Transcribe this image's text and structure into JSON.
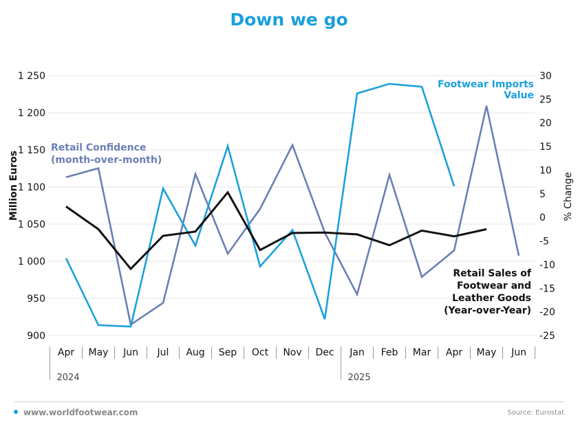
{
  "chart_data": {
    "type": "line",
    "title": "Down we go",
    "ylabel_left": "Million Euros",
    "ylabel_right": "% Change",
    "ylim_left": [
      900,
      1250
    ],
    "ylim_right": [
      -25,
      30
    ],
    "yticks_left": [
      900,
      950,
      1000,
      1050,
      1100,
      1150,
      1200,
      1250
    ],
    "yticks_left_labels": [
      "900",
      "950",
      "1 000",
      "1 050",
      "1 100",
      "1 150",
      "1 200",
      "1 250"
    ],
    "yticks_right": [
      -25,
      -20,
      -15,
      -10,
      -5,
      0,
      5,
      10,
      15,
      20,
      25,
      30
    ],
    "yticks_right_labels": [
      "-25",
      "-20",
      "-15",
      "-10",
      "-5",
      "0",
      "5",
      "10",
      "15",
      "20",
      "25",
      "30"
    ],
    "categories": [
      "Apr",
      "May",
      "Jun",
      "Jul",
      "Aug",
      "Sep",
      "Oct",
      "Nov",
      "Dec",
      "Jan",
      "Feb",
      "Mar",
      "Apr",
      "May",
      "Jun"
    ],
    "year_groups": [
      {
        "label": "2024",
        "start": 0,
        "end": 8
      },
      {
        "label": "2025",
        "start": 9,
        "end": 14
      }
    ],
    "grid": true,
    "series": [
      {
        "name": "Footwear Imports Value",
        "name_lines": [
          "Footwear Imports",
          "Value"
        ],
        "axis": "left",
        "color": "#1aa0dc",
        "values": [
          1004,
          914,
          912,
          1098,
          1021,
          1155,
          993,
          1042,
          922,
          1226,
          1239,
          1235,
          1101,
          null,
          null
        ]
      },
      {
        "name": "Retail Confidence (month-over-month)",
        "name_lines": [
          "Retail Confidence",
          "(month-over-month)"
        ],
        "axis": "right",
        "color": "#6a7fb5",
        "values": [
          8.5,
          10.4,
          -22.7,
          -18.1,
          9.2,
          -7.7,
          1.8,
          15.3,
          -3.2,
          -16.3,
          9.0,
          -12.6,
          -7.0,
          23.6,
          -8.1
        ]
      },
      {
        "name": "Retail Sales of Footwear and Leather Goods (Year-over-Year)",
        "name_lines": [
          "Retail Sales of",
          "Footwear and",
          "Leather Goods",
          "(Year-over-Year)"
        ],
        "axis": "right",
        "color": "#111111",
        "values": [
          2.3,
          -2.5,
          -10.9,
          -3.9,
          -3.0,
          5.3,
          -6.9,
          -3.3,
          -3.2,
          -3.6,
          -5.9,
          -2.8,
          -4.0,
          -2.5,
          null
        ]
      }
    ]
  },
  "footer": {
    "website": "www.worldfootwear.com",
    "source": "Source: Eurostat"
  }
}
